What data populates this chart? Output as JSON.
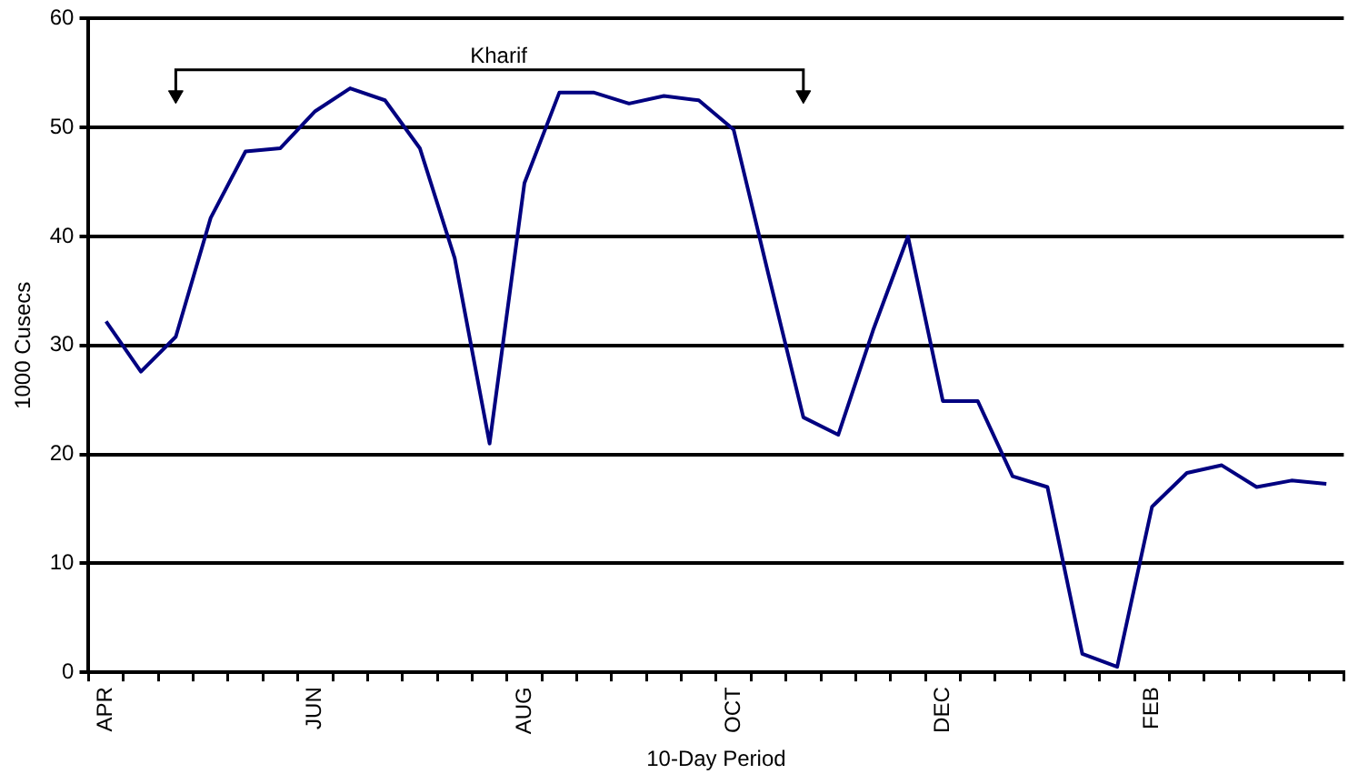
{
  "chart_data": {
    "type": "line",
    "xlabel": "10-Day Period",
    "ylabel": "1000 Cusecs",
    "annotations": [
      "Kharif"
    ],
    "categories": [
      "APR",
      null,
      null,
      null,
      null,
      null,
      "JUN",
      null,
      null,
      null,
      null,
      null,
      "AUG",
      null,
      null,
      null,
      null,
      null,
      "OCT",
      null,
      null,
      null,
      null,
      null,
      "DEC",
      null,
      null,
      null,
      null,
      null,
      "FEB",
      null,
      null,
      null,
      null,
      null
    ],
    "series": [
      {
        "color": "#000080",
        "values": [
          32.2,
          27.6,
          30.8,
          41.7,
          47.8,
          48.1,
          51.5,
          53.6,
          52.5,
          48.1,
          38,
          21,
          44.9,
          53.2,
          53.2,
          52.2,
          52.9,
          52.5,
          49.8,
          36.5,
          23.4,
          21.8,
          31.4,
          40,
          24.9,
          24.9,
          18,
          17,
          1.7,
          0.5,
          15.2,
          18.3,
          19,
          17,
          17.6,
          17.3
        ]
      }
    ],
    "ylim": [
      0,
      60
    ],
    "yticks": [
      0,
      10,
      20,
      30,
      40,
      50,
      60
    ],
    "grid": "y",
    "legend": false,
    "marker": "none",
    "line_style": "solid"
  }
}
